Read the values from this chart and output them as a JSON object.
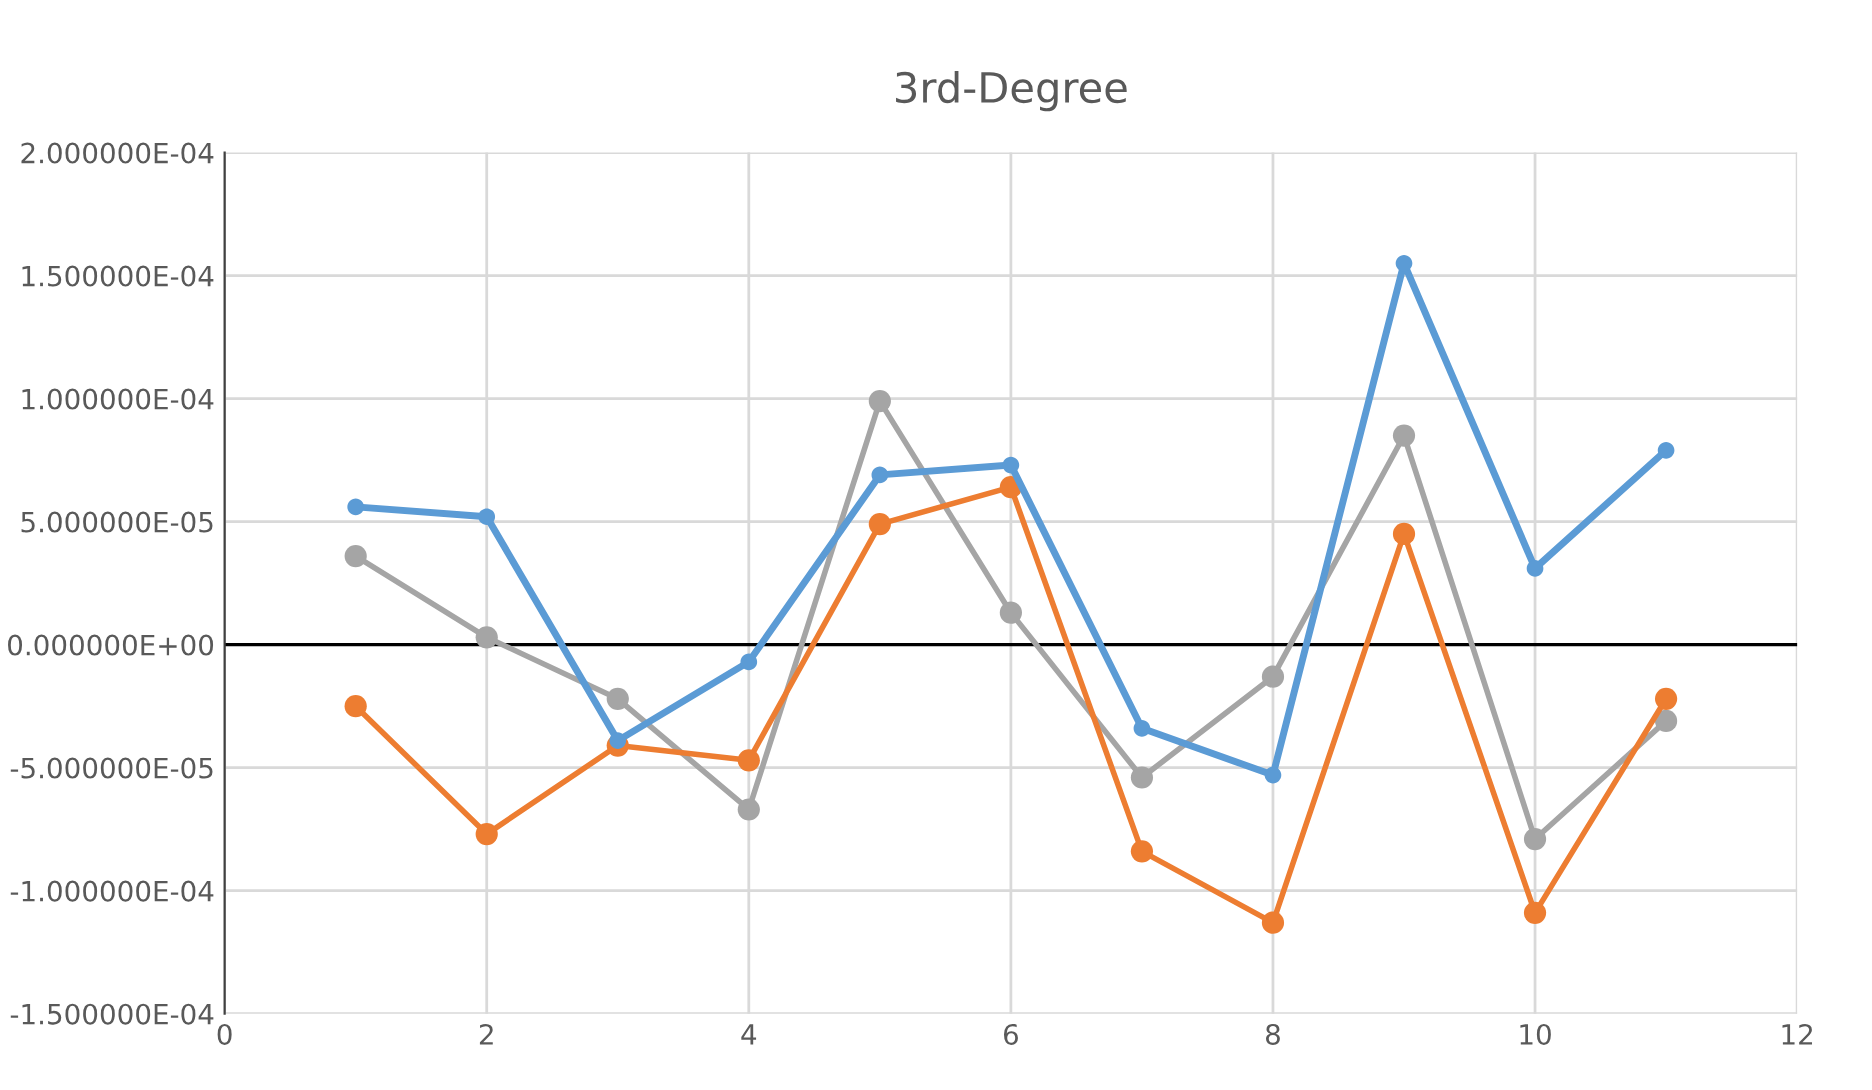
{
  "chart_data": {
    "type": "line",
    "title": "3rd-Degree",
    "x": [
      1,
      2,
      3,
      4,
      5,
      6,
      7,
      8,
      9,
      10,
      11
    ],
    "series": [
      {
        "color": "#5b9bd5",
        "values": [
          5.6e-05,
          5.2e-05,
          -3.9e-05,
          -7e-06,
          6.9e-05,
          7.3e-05,
          -3.4e-05,
          -5.3e-05,
          0.000155,
          3.1e-05,
          7.9e-05
        ]
      },
      {
        "color": "#ed7d31",
        "values": [
          -2.5e-05,
          -7.7e-05,
          -4.1e-05,
          -4.7e-05,
          4.9e-05,
          6.4e-05,
          -8.4e-05,
          -0.000113,
          4.5e-05,
          -0.000109,
          -2.2e-05
        ]
      },
      {
        "color": "#a5a5a5",
        "values": [
          3.6e-05,
          3e-06,
          -2.2e-05,
          -6.7e-05,
          9.9e-05,
          1.3e-05,
          -5.4e-05,
          -1.3e-05,
          8.5e-05,
          -7.9e-05,
          -3.1e-05
        ]
      }
    ],
    "xlim": [
      0,
      12
    ],
    "xticks": [
      0,
      2,
      4,
      6,
      8,
      10,
      12
    ],
    "ylim": [
      -0.00015,
      0.0002
    ],
    "yticks": [
      {
        "value": -0.00015,
        "label": "-1.500000E-04"
      },
      {
        "value": -0.0001,
        "label": "-1.000000E-04"
      },
      {
        "value": -5e-05,
        "label": "-5.000000E-05"
      },
      {
        "value": 0,
        "label": "0.000000E+00"
      },
      {
        "value": 5e-05,
        "label": "5.000000E-05"
      },
      {
        "value": 0.0001,
        "label": "1.000000E-04"
      },
      {
        "value": 0.00015,
        "label": "1.500000E-04"
      },
      {
        "value": 0.0002,
        "label": "2.000000E-04"
      }
    ],
    "ref_lines": [
      {
        "axis": "y",
        "value": 0,
        "color": "#000000"
      }
    ],
    "grid": true,
    "marker": "circle",
    "line_style": "solid"
  }
}
